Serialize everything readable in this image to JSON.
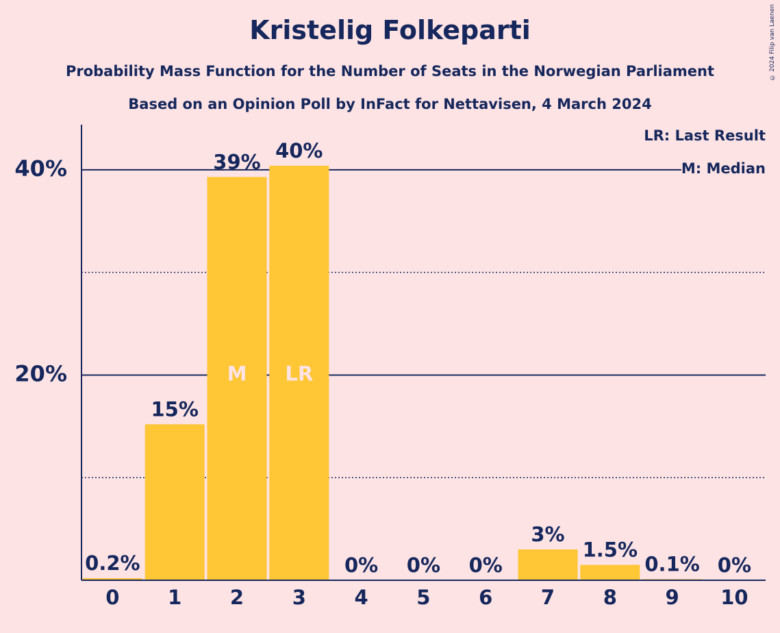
{
  "header": {
    "title": "Kristelig Folkeparti",
    "subtitle1": "Probability Mass Function for the Number of Seats in the Norwegian Parliament",
    "subtitle2": "Based on an Opinion Poll by InFact for Nettavisen, 4 March 2024",
    "copyright": "© 2024 Filip van Laenen"
  },
  "legend": {
    "last_result": "LR: Last Result",
    "median": "M: Median"
  },
  "colors": {
    "bar": "#FFC636",
    "text": "#15275C",
    "background": "#FDE3E4",
    "marker_text": "#FDE3E4"
  },
  "chart_data": {
    "type": "bar",
    "categories": [
      "0",
      "1",
      "2",
      "3",
      "4",
      "5",
      "6",
      "7",
      "8",
      "9",
      "10"
    ],
    "values": [
      0.2,
      15.2,
      39.3,
      40.4,
      0,
      0,
      0,
      3.0,
      1.5,
      0.1,
      0
    ],
    "value_labels": [
      "0.2%",
      "15%",
      "39%",
      "40%",
      "0%",
      "0%",
      "0%",
      "3%",
      "1.5%",
      "0.1%",
      "0%"
    ],
    "markers": {
      "2": "M",
      "3": "LR"
    },
    "y_ticks": [
      {
        "value": 20,
        "label": "20%"
      },
      {
        "value": 40,
        "label": "40%"
      }
    ],
    "y_minor_gridlines": [
      10,
      30
    ],
    "ylim": [
      0,
      44.4
    ],
    "xlabel": "",
    "ylabel": "",
    "grid": true,
    "legend_position": "top-right"
  }
}
